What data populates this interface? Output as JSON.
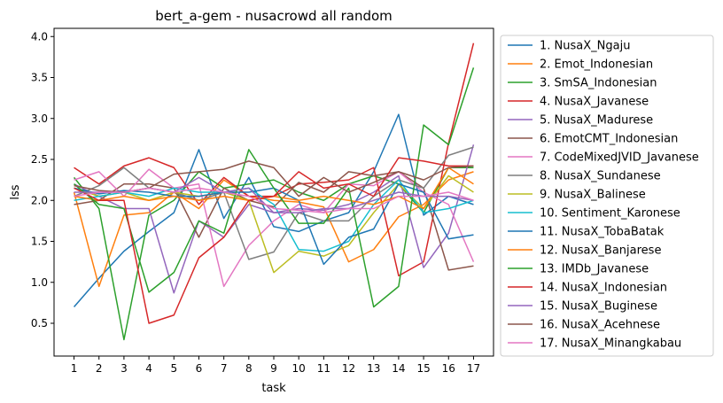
{
  "chart_data": {
    "type": "line",
    "title": "bert_a-gem - nusacrowd all random",
    "xlabel": "task",
    "ylabel": "lss",
    "x": [
      1,
      2,
      3,
      4,
      5,
      6,
      7,
      8,
      9,
      10,
      11,
      12,
      13,
      14,
      15,
      16,
      17
    ],
    "xlim": [
      0.2,
      17.8
    ],
    "ylim": [
      0.1,
      4.1
    ],
    "yticks": [
      0.5,
      1.0,
      1.5,
      2.0,
      2.5,
      3.0,
      3.5,
      4.0
    ],
    "ytick_labels": [
      "0.5",
      "1.0",
      "1.5",
      "2.0",
      "2.5",
      "3.0",
      "3.5",
      "4.0"
    ],
    "xtick_labels": [
      "1",
      "2",
      "3",
      "4",
      "5",
      "6",
      "7",
      "8",
      "9",
      "10",
      "11",
      "12",
      "13",
      "14",
      "15",
      "16",
      "17"
    ],
    "grid": false,
    "legend_position": "outside-right",
    "series": [
      {
        "name": "1. NusaX_Ngaju",
        "color": "#1f77b4",
        "values": [
          0.7,
          1.05,
          1.38,
          1.62,
          1.85,
          2.62,
          1.78,
          2.28,
          1.68,
          1.62,
          1.75,
          1.85,
          2.35,
          3.05,
          1.82,
          2.05,
          1.95
        ]
      },
      {
        "name": "2. Emot_Indonesian",
        "color": "#ff7f0e",
        "values": [
          2.1,
          0.95,
          1.82,
          1.85,
          2.1,
          1.9,
          2.25,
          2.05,
          2.0,
          1.98,
          1.92,
          1.25,
          1.4,
          1.8,
          1.95,
          2.25,
          2.35
        ]
      },
      {
        "name": "3. SmSA_Indonesian",
        "color": "#2ca02c",
        "values": [
          2.28,
          1.9,
          0.3,
          1.82,
          2.0,
          2.35,
          2.15,
          2.2,
          2.25,
          2.1,
          2.0,
          2.2,
          2.3,
          2.2,
          1.85,
          2.4,
          2.4
        ]
      },
      {
        "name": "4. NusaX_Javanese",
        "color": "#d62728",
        "values": [
          2.4,
          2.2,
          2.42,
          2.52,
          2.4,
          1.95,
          2.28,
          2.05,
          2.05,
          2.2,
          2.22,
          2.25,
          2.4,
          1.08,
          1.25,
          2.7,
          3.92
        ]
      },
      {
        "name": "5. NusaX_Madurese",
        "color": "#9467bd",
        "values": [
          2.2,
          2.05,
          1.9,
          1.9,
          0.87,
          1.75,
          1.55,
          1.95,
          1.85,
          1.9,
          1.88,
          1.95,
          2.1,
          2.3,
          1.18,
          1.6,
          2.68
        ]
      },
      {
        "name": "6. EmotCMT_Indonesian",
        "color": "#8c564b",
        "values": [
          1.95,
          2.0,
          2.2,
          2.2,
          2.15,
          1.55,
          2.15,
          2.0,
          1.92,
          2.22,
          2.1,
          2.35,
          2.3,
          2.35,
          2.15,
          1.15,
          1.2
        ]
      },
      {
        "name": "7. CodeMixedJVID_Javanese",
        "color": "#e377c2",
        "values": [
          2.25,
          2.35,
          2.05,
          2.38,
          2.15,
          2.2,
          0.95,
          1.45,
          1.75,
          1.95,
          1.85,
          2.2,
          2.18,
          2.35,
          2.1,
          1.95,
          1.25
        ]
      },
      {
        "name": "8. NusaX_Sundanese",
        "color": "#7f7f7f",
        "values": [
          2.05,
          2.18,
          2.4,
          2.15,
          2.1,
          2.0,
          2.1,
          1.28,
          1.37,
          1.85,
          1.75,
          1.75,
          2.05,
          2.25,
          2.15,
          2.55,
          2.65
        ]
      },
      {
        "name": "9. NusaX_Balinese",
        "color": "#bcbd22",
        "values": [
          2.15,
          2.05,
          2.1,
          2.0,
          2.1,
          2.05,
          2.1,
          2.0,
          1.12,
          1.38,
          1.32,
          1.45,
          1.85,
          2.2,
          1.9,
          2.3,
          2.1
        ]
      },
      {
        "name": "10. Sentiment_Karonese",
        "color": "#17becf",
        "values": [
          2.0,
          2.05,
          2.1,
          2.05,
          2.15,
          2.1,
          2.1,
          2.15,
          1.95,
          1.4,
          1.38,
          1.5,
          1.95,
          2.25,
          1.85,
          1.9,
          2.0
        ]
      },
      {
        "name": "11. NusaX_TobaBatak",
        "color": "#1f77b4",
        "values": [
          2.15,
          2.08,
          2.12,
          2.1,
          2.05,
          2.05,
          2.1,
          2.1,
          2.15,
          2.0,
          1.22,
          1.55,
          1.65,
          2.2,
          2.1,
          1.53,
          1.58
        ]
      },
      {
        "name": "12. NusaX_Banjarese",
        "color": "#ff7f0e",
        "values": [
          2.05,
          2.0,
          2.05,
          2.0,
          2.05,
          2.0,
          2.05,
          2.0,
          2.05,
          2.0,
          2.05,
          2.0,
          1.95,
          2.05,
          1.9,
          2.4,
          2.2
        ]
      },
      {
        "name": "13. IMDb_Javanese",
        "color": "#2ca02c",
        "values": [
          2.2,
          1.95,
          1.9,
          0.88,
          1.12,
          1.75,
          1.6,
          2.62,
          2.15,
          1.72,
          1.72,
          2.15,
          0.7,
          0.95,
          2.92,
          2.68,
          3.62
        ]
      },
      {
        "name": "14. NusaX_Indonesian",
        "color": "#d62728",
        "values": [
          2.15,
          2.0,
          2.0,
          0.5,
          0.6,
          1.3,
          1.55,
          2.0,
          2.05,
          2.35,
          2.15,
          2.2,
          2.05,
          2.52,
          2.48,
          2.42,
          2.42
        ]
      },
      {
        "name": "15. NusaX_Buginese",
        "color": "#9467bd",
        "values": [
          2.1,
          2.1,
          2.1,
          2.15,
          2.1,
          2.28,
          2.1,
          2.15,
          1.85,
          1.85,
          1.9,
          1.9,
          2.0,
          2.1,
          2.05,
          2.05,
          2.0
        ]
      },
      {
        "name": "16. NusaX_Acehnese",
        "color": "#8c564b",
        "values": [
          2.18,
          2.12,
          2.1,
          2.15,
          2.32,
          2.35,
          2.38,
          2.48,
          2.4,
          2.05,
          2.28,
          2.1,
          2.22,
          2.35,
          2.25,
          2.4,
          2.42
        ]
      },
      {
        "name": "17. NusaX_Minangkabau",
        "color": "#e377c2",
        "values": [
          2.05,
          2.1,
          2.1,
          2.15,
          2.1,
          2.15,
          2.1,
          2.05,
          1.9,
          1.88,
          1.85,
          1.9,
          1.9,
          2.05,
          2.05,
          2.1,
          2.0
        ]
      }
    ]
  }
}
